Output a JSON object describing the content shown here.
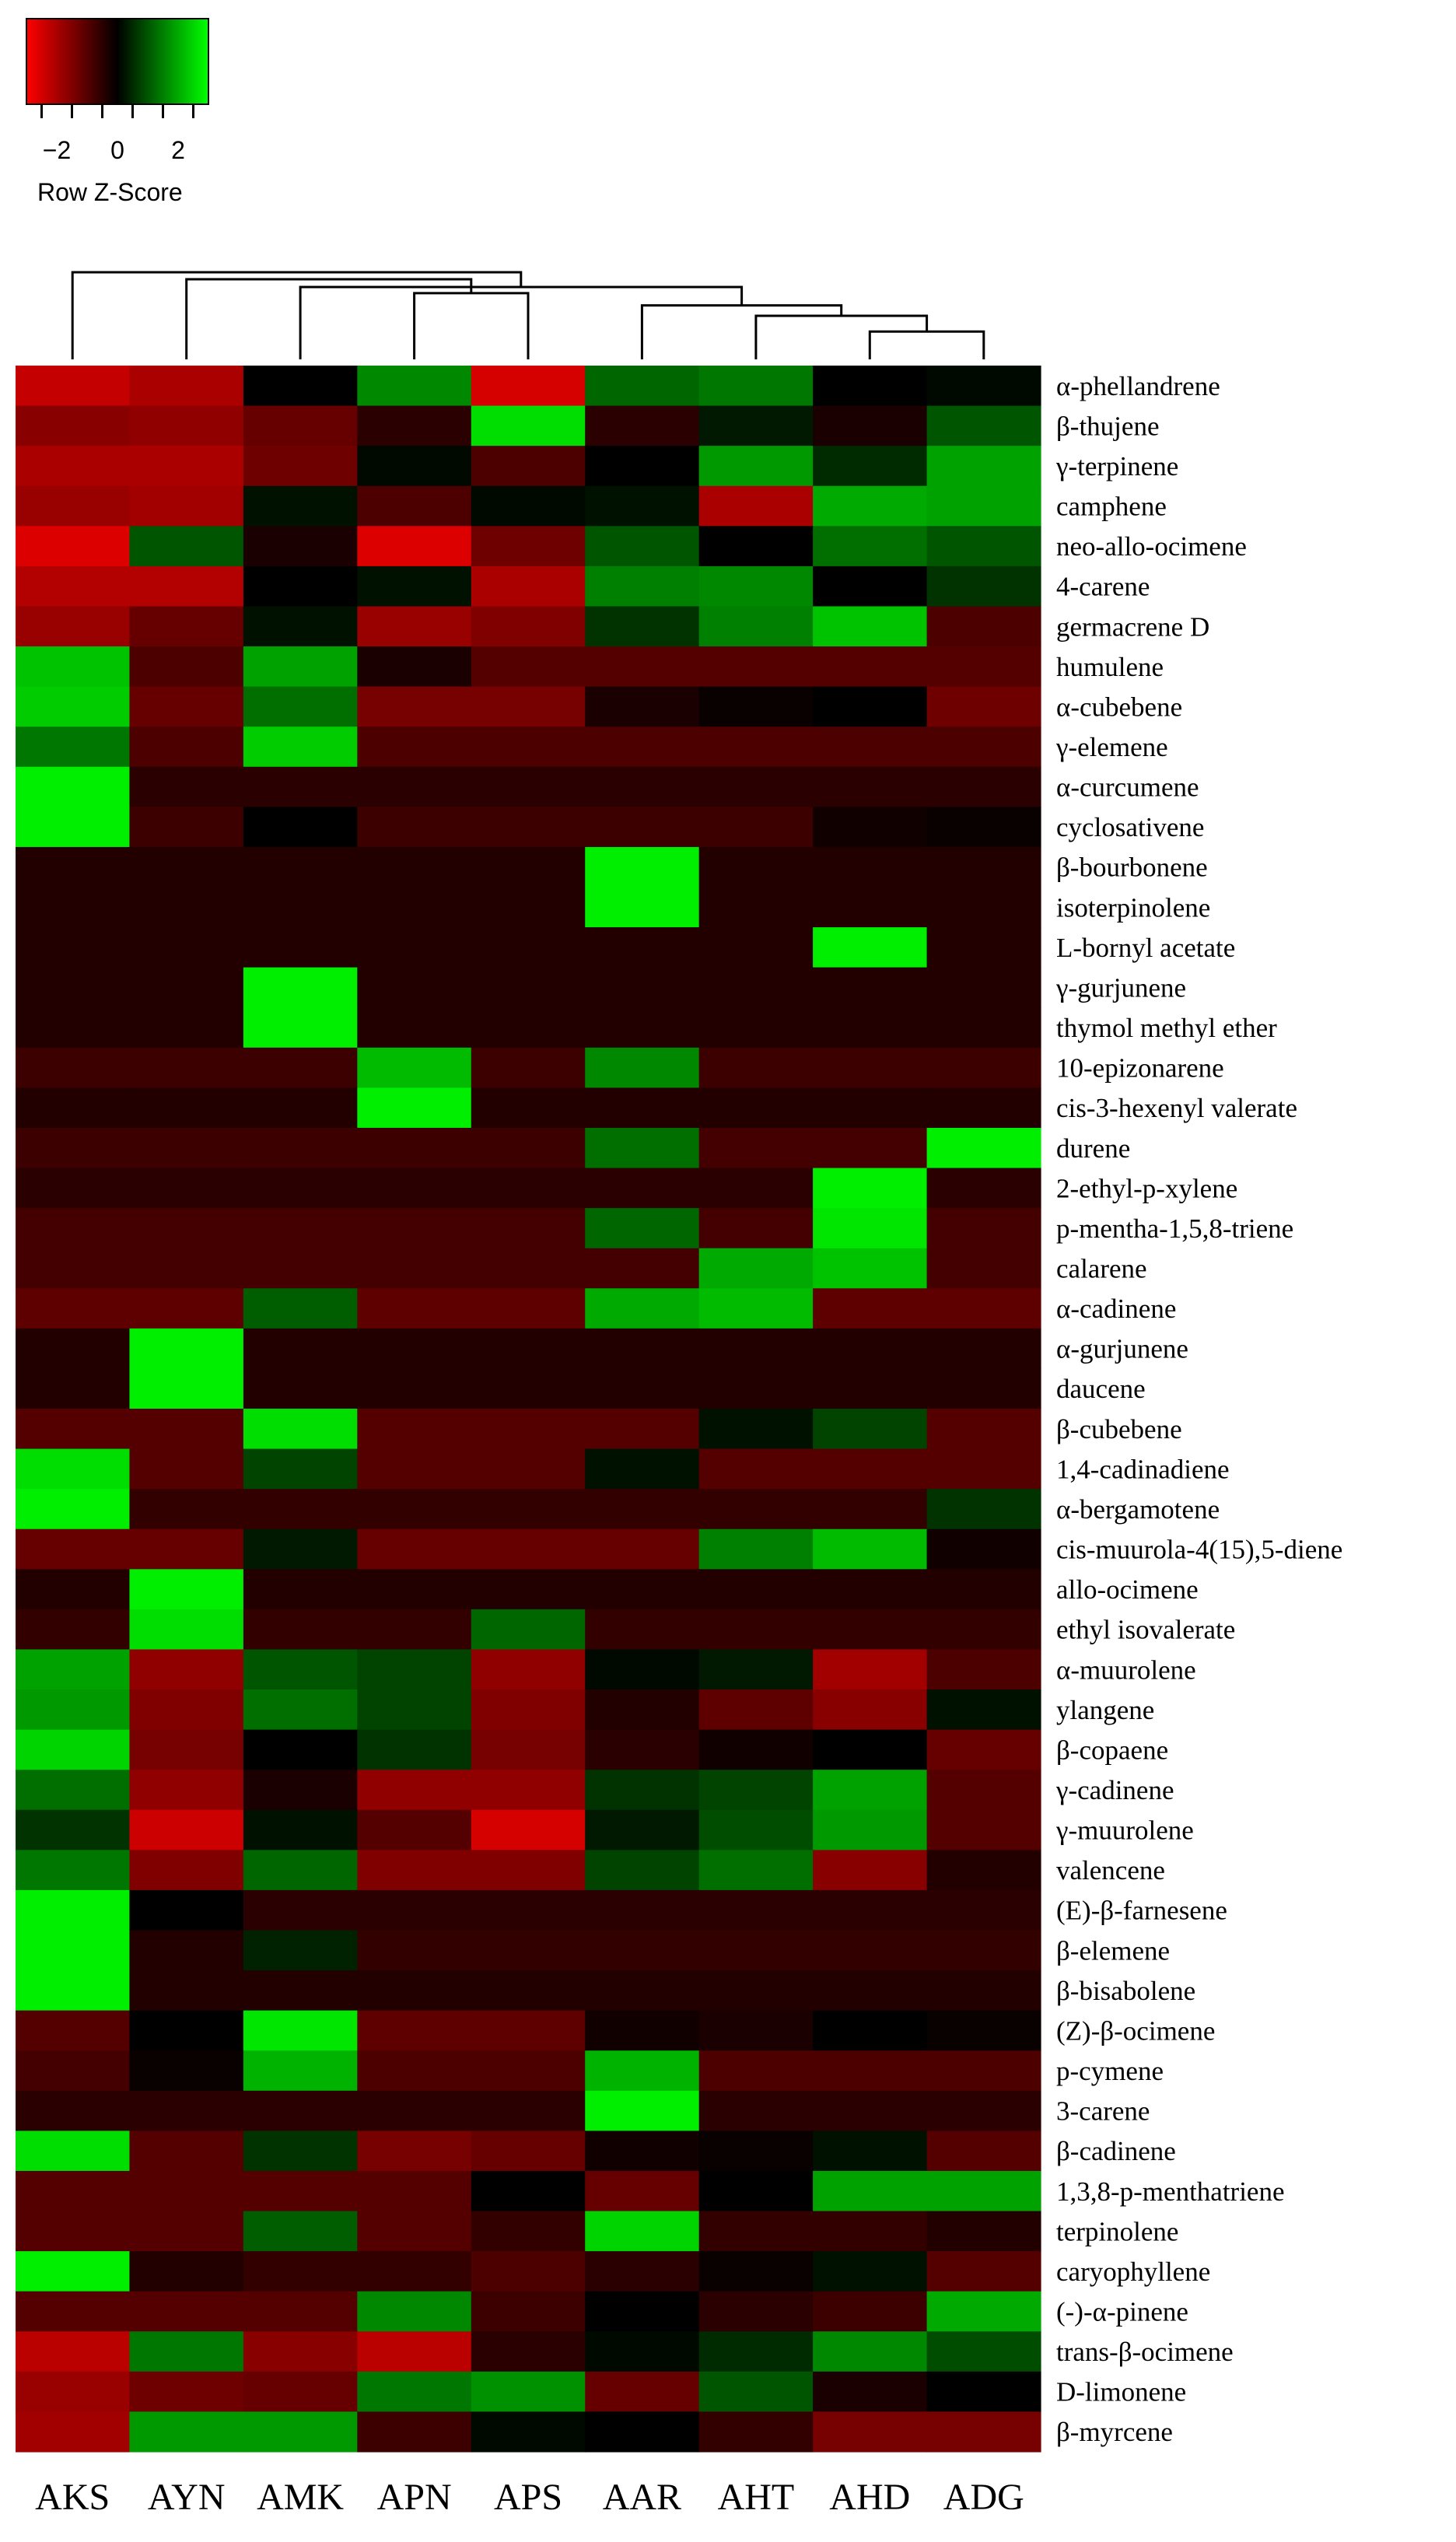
{
  "chart_data": {
    "type": "heatmap",
    "columns": [
      "AKS",
      "AYN",
      "AMK",
      "APN",
      "APS",
      "AAR",
      "AHT",
      "AHD",
      "ADG"
    ],
    "rows": [
      "α-phellandrene",
      "β-thujene",
      "γ-terpinene",
      "camphene",
      "neo-allo-ocimene",
      "4-carene",
      "germacrene D",
      "humulene",
      "α-cubebene",
      "γ-elemene",
      "α-curcumene",
      "cyclosativene",
      "β-bourbonene",
      "isoterpinolene",
      "L-bornyl acetate",
      "γ-gurjunene",
      "thymol methyl ether",
      "10-epizonarene",
      "cis-3-hexenyl valerate",
      "durene",
      "2-ethyl-p-xylene",
      "p-mentha-1,5,8-triene",
      "calarene",
      "α-cadinene",
      "α-gurjunene",
      "daucene",
      "β-cubebene",
      "1,4-cadinadiene",
      "α-bergamotene",
      "cis-muurola-4(15),5-diene",
      "allo-ocimene",
      "ethyl isovalerate",
      "α-muurolene",
      "ylangene",
      "β-copaene",
      "γ-cadinene",
      "γ-muurolene",
      "valencene",
      "(E)-β-farnesene",
      "β-elemene",
      "β-bisabolene",
      "(Z)-β-ocimene",
      "p-cymene",
      "3-carene",
      "β-cadinene",
      "1,3,8-p-menthatriene",
      "terpinolene",
      "caryophyllene",
      "(-)-α-pinene",
      "trans-β-ocimene",
      "D-limonene",
      "β-myrcene"
    ],
    "values": [
      [
        -2.3,
        -2.0,
        0.0,
        1.6,
        -2.5,
        1.2,
        1.4,
        0.0,
        0.1
      ],
      [
        -1.6,
        -1.7,
        -1.2,
        -0.5,
        2.6,
        -0.5,
        0.3,
        -0.3,
        1.0
      ],
      [
        -2.0,
        -2.0,
        -1.3,
        0.1,
        -0.9,
        0.0,
        1.8,
        0.5,
        1.9
      ],
      [
        -1.8,
        -1.9,
        0.2,
        -0.9,
        0.1,
        0.2,
        -2.0,
        2.0,
        1.9
      ],
      [
        -2.6,
        1.0,
        -0.3,
        -2.6,
        -1.3,
        1.0,
        0.0,
        1.3,
        1.0
      ],
      [
        -2.1,
        -2.1,
        0.0,
        0.2,
        -2.0,
        1.5,
        1.6,
        0.0,
        0.6
      ],
      [
        -1.8,
        -1.2,
        0.2,
        -1.8,
        -1.5,
        0.6,
        1.5,
        2.3,
        -0.9
      ],
      [
        2.3,
        -0.9,
        1.9,
        -0.3,
        -1.0,
        -1.0,
        -1.0,
        -1.0,
        -1.0
      ],
      [
        2.4,
        -1.2,
        1.3,
        -1.4,
        -1.4,
        -0.3,
        -0.1,
        0.0,
        -1.3
      ],
      [
        1.4,
        -0.9,
        2.4,
        -0.9,
        -0.9,
        -0.9,
        -0.9,
        -0.9,
        -0.9
      ],
      [
        2.8,
        -0.5,
        -0.5,
        -0.5,
        -0.5,
        -0.5,
        -0.5,
        -0.5,
        -0.5
      ],
      [
        2.8,
        -0.7,
        0.0,
        -0.7,
        -0.7,
        -0.7,
        -0.7,
        -0.2,
        -0.1
      ],
      [
        -0.4,
        -0.4,
        -0.4,
        -0.4,
        -0.4,
        2.8,
        -0.4,
        -0.4,
        -0.4
      ],
      [
        -0.4,
        -0.4,
        -0.4,
        -0.4,
        -0.4,
        2.8,
        -0.4,
        -0.4,
        -0.4
      ],
      [
        -0.4,
        -0.4,
        -0.4,
        -0.4,
        -0.4,
        -0.4,
        -0.4,
        2.8,
        -0.4
      ],
      [
        -0.4,
        -0.4,
        2.8,
        -0.4,
        -0.4,
        -0.4,
        -0.4,
        -0.4,
        -0.4
      ],
      [
        -0.4,
        -0.4,
        2.8,
        -0.4,
        -0.4,
        -0.4,
        -0.4,
        -0.4,
        -0.4
      ],
      [
        -0.7,
        -0.7,
        -0.7,
        2.2,
        -0.7,
        1.6,
        -0.7,
        -0.7,
        -0.7
      ],
      [
        -0.4,
        -0.4,
        -0.4,
        2.8,
        -0.4,
        -0.4,
        -0.4,
        -0.4,
        -0.4
      ],
      [
        -0.7,
        -0.7,
        -0.7,
        -0.7,
        -0.7,
        1.3,
        -0.8,
        -0.8,
        2.8
      ],
      [
        -0.5,
        -0.5,
        -0.5,
        -0.5,
        -0.5,
        -0.5,
        -0.5,
        2.8,
        -0.5
      ],
      [
        -0.8,
        -0.8,
        -0.8,
        -0.8,
        -0.8,
        1.2,
        -0.8,
        2.7,
        -0.8
      ],
      [
        -0.8,
        -0.8,
        -0.8,
        -0.8,
        -0.8,
        -0.8,
        2.0,
        2.3,
        -0.8
      ],
      [
        -1.1,
        -1.1,
        1.1,
        -1.1,
        -1.1,
        2.0,
        2.2,
        -1.1,
        -1.1
      ],
      [
        -0.4,
        2.8,
        -0.4,
        -0.4,
        -0.4,
        -0.4,
        -0.4,
        -0.4,
        -0.4
      ],
      [
        -0.4,
        2.8,
        -0.4,
        -0.4,
        -0.4,
        -0.4,
        -0.4,
        -0.4,
        -0.4
      ],
      [
        -1.0,
        -1.0,
        2.6,
        -1.0,
        -1.0,
        -1.0,
        0.2,
        0.8,
        -1.0
      ],
      [
        2.6,
        -1.0,
        0.8,
        -1.0,
        -1.0,
        0.2,
        -1.0,
        -1.0,
        -1.0
      ],
      [
        2.8,
        -0.6,
        -0.6,
        -0.6,
        -0.6,
        -0.6,
        -0.6,
        -0.6,
        0.6
      ],
      [
        -1.2,
        -1.2,
        0.3,
        -1.2,
        -1.2,
        -1.2,
        1.5,
        2.2,
        -0.2
      ],
      [
        -0.4,
        2.8,
        -0.4,
        -0.4,
        -0.4,
        -0.4,
        -0.4,
        -0.4,
        -0.4
      ],
      [
        -0.6,
        2.6,
        -0.6,
        -0.6,
        1.2,
        -0.6,
        -0.6,
        -0.6,
        -0.6
      ],
      [
        1.9,
        -1.7,
        1.0,
        0.8,
        -1.7,
        0.1,
        0.3,
        -1.9,
        -0.9
      ],
      [
        1.8,
        -1.5,
        1.3,
        0.8,
        -1.5,
        -0.4,
        -1.1,
        -1.6,
        0.2
      ],
      [
        2.5,
        -1.4,
        0.0,
        0.6,
        -1.4,
        -0.5,
        -0.2,
        0.0,
        -1.2
      ],
      [
        1.3,
        -1.7,
        -0.3,
        -1.7,
        -1.7,
        0.6,
        0.8,
        1.9,
        -1.0
      ],
      [
        0.6,
        -2.4,
        0.2,
        -1.0,
        -2.5,
        0.3,
        0.9,
        1.8,
        -1.0
      ],
      [
        1.4,
        -1.5,
        1.2,
        -1.5,
        -1.5,
        0.8,
        1.3,
        -1.6,
        -0.4
      ],
      [
        2.8,
        0.0,
        -0.5,
        -0.5,
        -0.5,
        -0.5,
        -0.5,
        -0.5,
        -0.5
      ],
      [
        2.8,
        -0.4,
        0.4,
        -0.6,
        -0.6,
        -0.6,
        -0.6,
        -0.6,
        -0.6
      ],
      [
        2.8,
        -0.4,
        -0.4,
        -0.4,
        -0.4,
        -0.4,
        -0.4,
        -0.4,
        -0.4
      ],
      [
        -1.0,
        0.0,
        2.7,
        -1.1,
        -1.1,
        -0.2,
        -0.3,
        0.0,
        -0.1
      ],
      [
        -0.8,
        -0.1,
        2.1,
        -0.9,
        -0.9,
        2.1,
        -0.9,
        -0.9,
        -0.9
      ],
      [
        -0.5,
        -0.5,
        -0.5,
        -0.5,
        -0.5,
        2.8,
        -0.5,
        -0.5,
        -0.5
      ],
      [
        2.6,
        -1.0,
        0.6,
        -1.4,
        -1.2,
        -0.2,
        -0.1,
        0.2,
        -1.0
      ],
      [
        -1.0,
        -1.0,
        -1.0,
        -1.0,
        0.0,
        -1.2,
        0.0,
        1.9,
        1.9
      ],
      [
        -1.0,
        -1.0,
        1.1,
        -1.0,
        -0.6,
        2.5,
        -0.6,
        -0.6,
        -0.4
      ],
      [
        2.8,
        -0.4,
        -0.6,
        -0.6,
        -0.9,
        -0.5,
        -0.1,
        0.2,
        -1.0
      ],
      [
        -1.0,
        -1.0,
        -1.0,
        1.6,
        -0.7,
        0.0,
        -0.5,
        -0.7,
        2.0
      ],
      [
        -2.2,
        1.4,
        -1.6,
        -2.2,
        -0.5,
        0.1,
        0.5,
        1.6,
        0.9
      ],
      [
        -1.8,
        -1.3,
        -1.2,
        1.4,
        1.7,
        -1.2,
        1.0,
        -0.3,
        0.0
      ],
      [
        -1.9,
        1.8,
        1.8,
        -0.7,
        0.1,
        0.0,
        -0.6,
        -1.4,
        -1.4
      ]
    ],
    "color_key": {
      "title": "Row Z-Score",
      "ticks": [
        -2,
        0,
        2
      ],
      "range": [
        -3,
        3
      ],
      "low_color": "#ff0000",
      "mid_color": "#000000",
      "high_color": "#00ff00"
    },
    "dendrogram": {
      "merges": [
        {
          "a": 7,
          "b": 8,
          "height": 0.32
        },
        {
          "a": 6,
          "b": 9,
          "height": 0.5
        },
        {
          "a": 5,
          "b": 10,
          "height": 0.62
        },
        {
          "a": 3,
          "b": 4,
          "height": 0.76
        },
        {
          "a": 2,
          "b": 11,
          "height": 0.83
        },
        {
          "a": 1,
          "b": 12,
          "height": 0.92
        },
        {
          "a": 0,
          "b": 13,
          "height": 1.0
        }
      ]
    }
  }
}
